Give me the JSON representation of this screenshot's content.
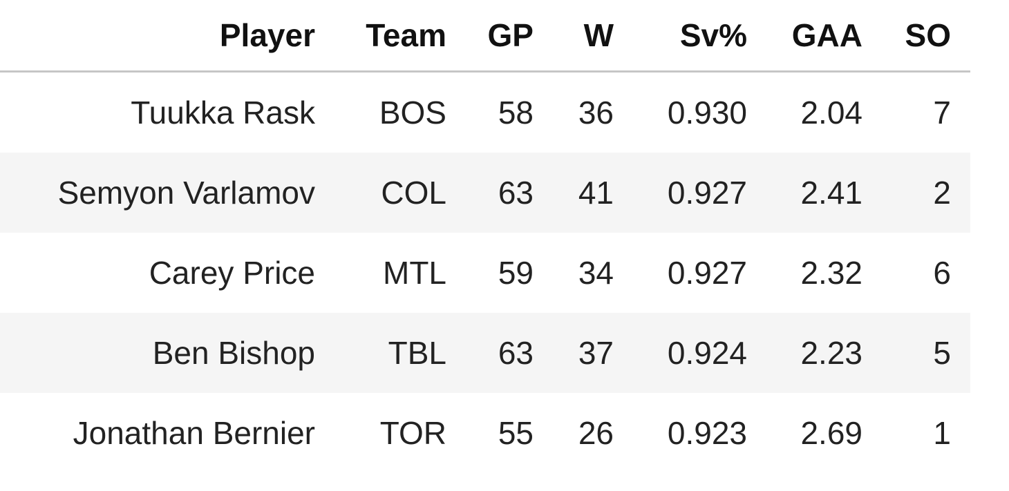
{
  "table": {
    "columns": [
      "Player",
      "Team",
      "GP",
      "W",
      "Sv%",
      "GAA",
      "SO"
    ],
    "rows": [
      [
        "Tuukka Rask",
        "BOS",
        "58",
        "36",
        "0.930",
        "2.04",
        "7"
      ],
      [
        "Semyon Varlamov",
        "COL",
        "63",
        "41",
        "0.927",
        "2.41",
        "2"
      ],
      [
        "Carey Price",
        "MTL",
        "59",
        "34",
        "0.927",
        "2.32",
        "6"
      ],
      [
        "Ben Bishop",
        "TBL",
        "63",
        "37",
        "0.924",
        "2.23",
        "5"
      ],
      [
        "Jonathan Bernier",
        "TOR",
        "55",
        "26",
        "0.923",
        "2.69",
        "1"
      ]
    ]
  },
  "colors": {
    "header_rule": "#c6c6c6",
    "stripe": "#f5f5f5",
    "background": "#ffffff",
    "text": "#222222"
  }
}
